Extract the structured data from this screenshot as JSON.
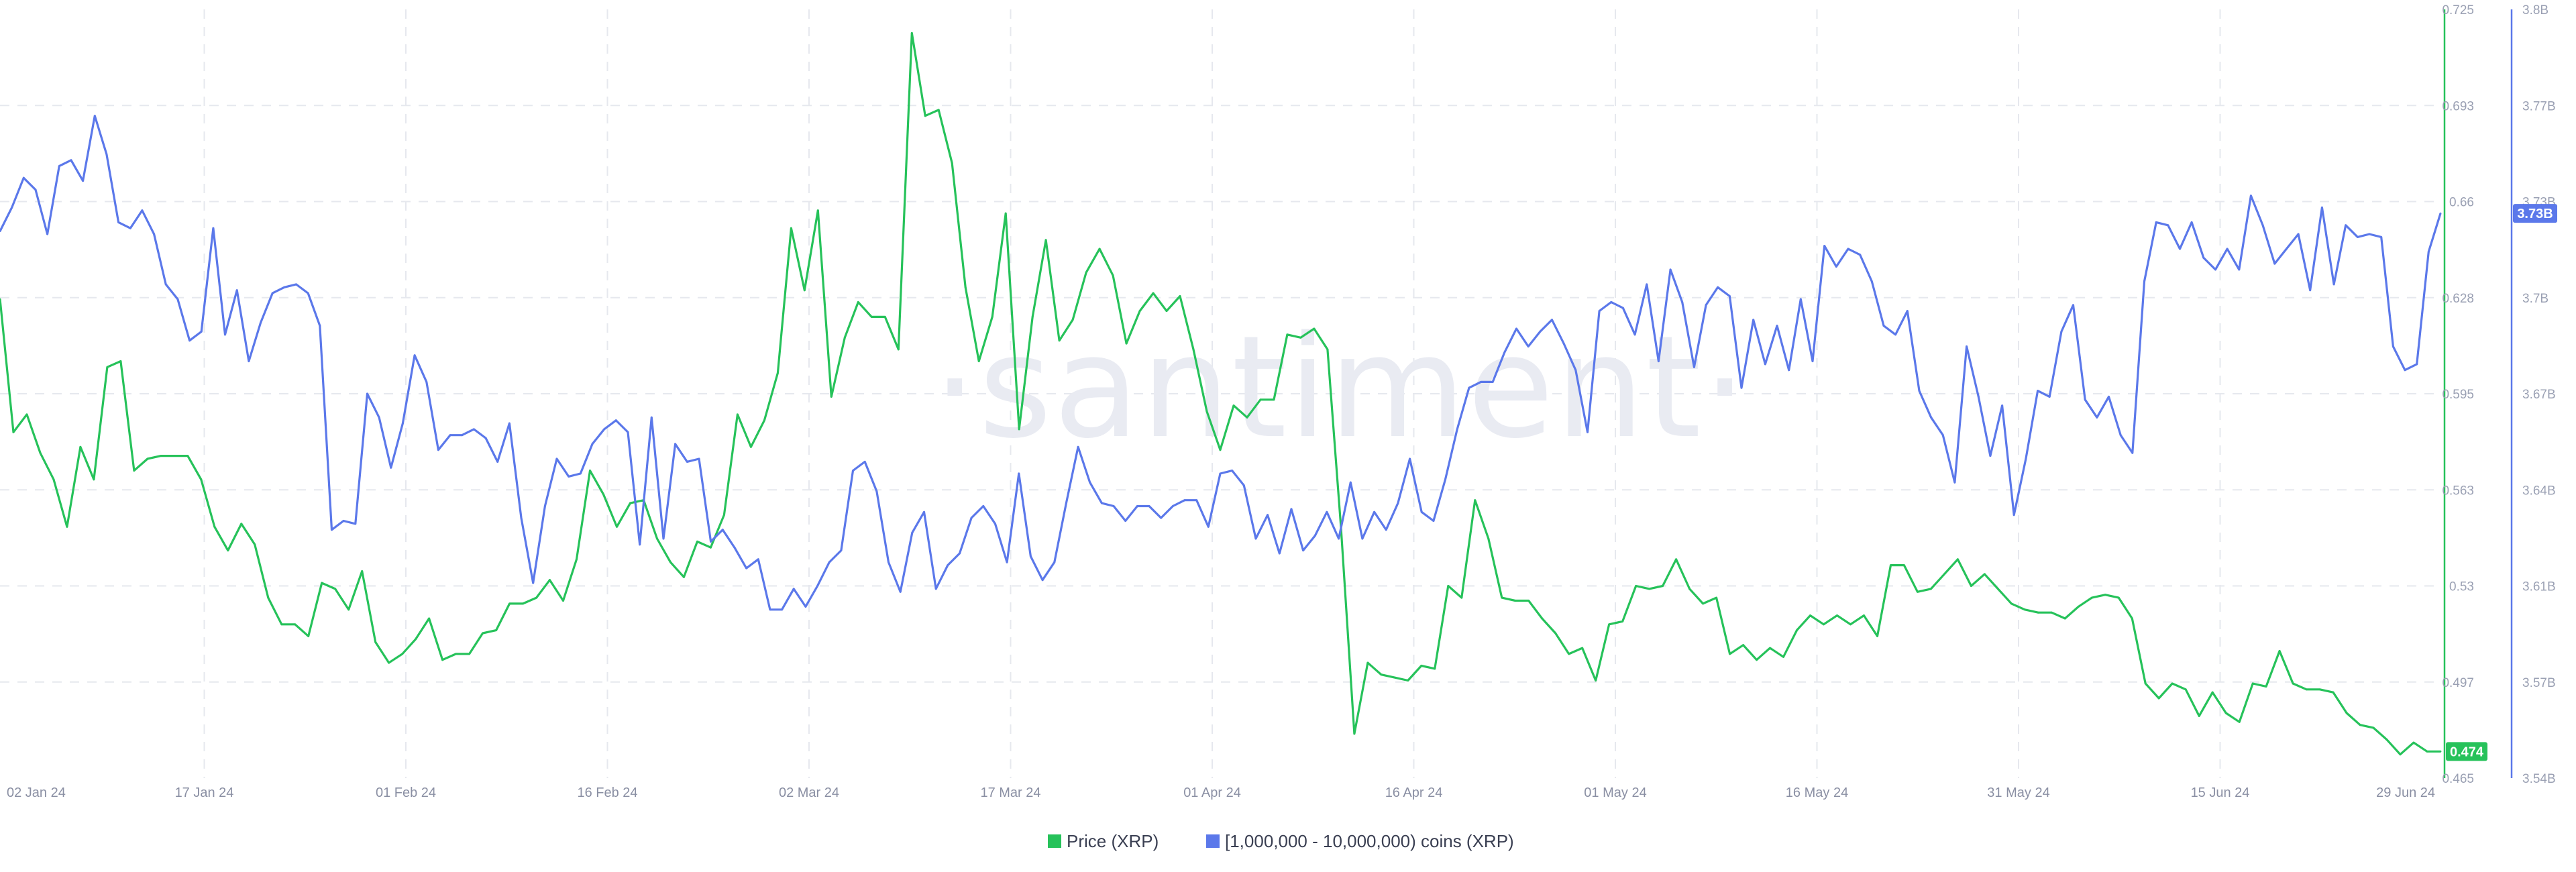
{
  "watermark": "·santiment·",
  "chart_data": {
    "type": "line",
    "x_tick_labels": [
      "02 Jan 24",
      "17 Jan 24",
      "01 Feb 24",
      "16 Feb 24",
      "02 Mar 24",
      "17 Mar 24",
      "01 Apr 24",
      "16 Apr 24",
      "01 May 24",
      "16 May 24",
      "31 May 24",
      "15 Jun 24",
      "29 Jun 24"
    ],
    "x_range": [
      "2024-01-02",
      "2024-06-29"
    ],
    "y_axes": {
      "price": {
        "range": [
          0.465,
          0.725
        ],
        "tick_labels": [
          "0.725",
          "0.693",
          "0.66",
          "0.628",
          "0.595",
          "0.563",
          "0.53",
          "0.497",
          "0.465"
        ],
        "current_value_label": "0.474",
        "color": "#26c25a"
      },
      "holders": {
        "range": [
          3.54,
          3.8
        ],
        "tick_labels": [
          "3.8B",
          "3.77B",
          "3.73B",
          "3.7B",
          "3.67B",
          "3.64B",
          "3.61B",
          "3.57B",
          "3.54B"
        ],
        "current_value_label": "3.73B",
        "color": "#5b78ea"
      }
    },
    "grid": true,
    "legend_position": "bottom-center",
    "series": [
      {
        "name": "Price (XRP)",
        "axis": "price",
        "color": "#26c25a",
        "values": [
          0.627,
          0.582,
          0.588,
          0.575,
          0.566,
          0.55,
          0.577,
          0.566,
          0.604,
          0.606,
          0.569,
          0.573,
          0.574,
          0.574,
          0.574,
          0.566,
          0.55,
          0.542,
          0.551,
          0.544,
          0.526,
          0.517,
          0.517,
          0.513,
          0.531,
          0.529,
          0.522,
          0.535,
          0.511,
          0.504,
          0.507,
          0.512,
          0.519,
          0.505,
          0.507,
          0.507,
          0.514,
          0.515,
          0.524,
          0.524,
          0.526,
          0.532,
          0.525,
          0.539,
          0.569,
          0.561,
          0.55,
          0.558,
          0.559,
          0.546,
          0.538,
          0.533,
          0.545,
          0.543,
          0.554,
          0.588,
          0.577,
          0.586,
          0.602,
          0.651,
          0.63,
          0.657,
          0.594,
          0.614,
          0.626,
          0.621,
          0.621,
          0.61,
          0.717,
          0.689,
          0.691,
          0.673,
          0.631,
          0.606,
          0.621,
          0.656,
          0.583,
          0.621,
          0.647,
          0.613,
          0.62,
          0.636,
          0.644,
          0.635,
          0.612,
          0.623,
          0.629,
          0.623,
          0.628,
          0.61,
          0.589,
          0.576,
          0.591,
          0.587,
          0.593,
          0.593,
          0.615,
          0.614,
          0.617,
          0.61,
          0.55,
          0.48,
          0.504,
          0.5,
          0.499,
          0.498,
          0.503,
          0.502,
          0.53,
          0.526,
          0.559,
          0.546,
          0.526,
          0.525,
          0.525,
          0.519,
          0.514,
          0.507,
          0.509,
          0.498,
          0.517,
          0.518,
          0.53,
          0.529,
          0.53,
          0.539,
          0.529,
          0.524,
          0.526,
          0.507,
          0.51,
          0.505,
          0.509,
          0.506,
          0.515,
          0.52,
          0.517,
          0.52,
          0.517,
          0.52,
          0.513,
          0.537,
          0.537,
          0.528,
          0.529,
          0.534,
          0.539,
          0.53,
          0.534,
          0.529,
          0.524,
          0.522,
          0.521,
          0.521,
          0.519,
          0.523,
          0.526,
          0.527,
          0.526,
          0.519,
          0.497,
          0.492,
          0.497,
          0.495,
          0.486,
          0.494,
          0.487,
          0.484,
          0.497,
          0.496,
          0.508,
          0.497,
          0.495,
          0.495,
          0.494,
          0.487,
          0.483,
          0.482,
          0.478,
          0.473,
          0.477,
          0.474,
          0.474
        ]
      },
      {
        "name": "[1,000,000 - 10,000,000) coins (XRP)",
        "axis": "holders",
        "color": "#5b78ea",
        "values": [
          3.725,
          3.733,
          3.743,
          3.739,
          3.724,
          3.747,
          3.749,
          3.742,
          3.764,
          3.751,
          3.728,
          3.726,
          3.732,
          3.724,
          3.707,
          3.702,
          3.688,
          3.691,
          3.726,
          3.69,
          3.705,
          3.681,
          3.694,
          3.704,
          3.706,
          3.707,
          3.704,
          3.693,
          3.624,
          3.627,
          3.626,
          3.67,
          3.662,
          3.645,
          3.66,
          3.683,
          3.674,
          3.651,
          3.656,
          3.656,
          3.658,
          3.655,
          3.647,
          3.66,
          3.628,
          3.606,
          3.632,
          3.648,
          3.642,
          3.643,
          3.653,
          3.658,
          3.661,
          3.657,
          3.619,
          3.662,
          3.621,
          3.653,
          3.647,
          3.648,
          3.62,
          3.624,
          3.618,
          3.611,
          3.614,
          3.597,
          3.597,
          3.604,
          3.598,
          3.605,
          3.613,
          3.617,
          3.644,
          3.647,
          3.637,
          3.613,
          3.603,
          3.623,
          3.63,
          3.604,
          3.612,
          3.616,
          3.628,
          3.632,
          3.626,
          3.613,
          3.643,
          3.615,
          3.607,
          3.613,
          3.633,
          3.652,
          3.64,
          3.633,
          3.632,
          3.627,
          3.632,
          3.632,
          3.628,
          3.632,
          3.634,
          3.634,
          3.625,
          3.643,
          3.644,
          3.639,
          3.621,
          3.629,
          3.616,
          3.631,
          3.617,
          3.622,
          3.63,
          3.621,
          3.64,
          3.621,
          3.63,
          3.624,
          3.633,
          3.648,
          3.63,
          3.627,
          3.641,
          3.658,
          3.672,
          3.674,
          3.674,
          3.684,
          3.692,
          3.686,
          3.691,
          3.695,
          3.687,
          3.678,
          3.657,
          3.698,
          3.701,
          3.699,
          3.69,
          3.707,
          3.681,
          3.712,
          3.701,
          3.679,
          3.7,
          3.706,
          3.703,
          3.672,
          3.695,
          3.68,
          3.693,
          3.678,
          3.702,
          3.681,
          3.72,
          3.713,
          3.719,
          3.717,
          3.708,
          3.693,
          3.69,
          3.698,
          3.671,
          3.662,
          3.656,
          3.64,
          3.686,
          3.669,
          3.649,
          3.666,
          3.629,
          3.648,
          3.671,
          3.669,
          3.691,
          3.7,
          3.668,
          3.662,
          3.669,
          3.656,
          3.65,
          3.708,
          3.728,
          3.727,
          3.719,
          3.728,
          3.716,
          3.712,
          3.719,
          3.712,
          3.737,
          3.727,
          3.714,
          3.719,
          3.724,
          3.705,
          3.733,
          3.707,
          3.727,
          3.723,
          3.724,
          3.723,
          3.686,
          3.678,
          3.68,
          3.718,
          3.731
        ]
      }
    ]
  }
}
